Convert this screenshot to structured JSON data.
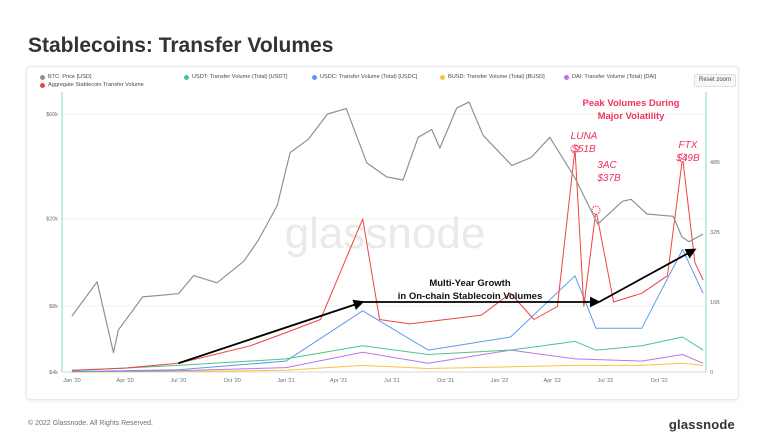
{
  "page": {
    "title": "Stablecoins: Transfer Volumes",
    "reset_zoom": "Reset zoom",
    "footer": "© 2022 Glassnode. All Rights Reserved.",
    "brand": "glassnode",
    "watermark": "glassnode"
  },
  "colors": {
    "btc": "#8a9397",
    "usdt": "#4fc28b",
    "usdc": "#5b9cf0",
    "busd": "#f5c542",
    "dai": "#b678e6",
    "aggregate": "#f0433f",
    "annotation": "#f0325f",
    "arrow": "#000000"
  },
  "chart_data": {
    "type": "line",
    "title": "Stablecoins: Transfer Volumes",
    "legend": [
      {
        "name": "BTC: Price [USD]",
        "color": "#8a9397"
      },
      {
        "name": "USDT: Transfer Volume (Total) [USDT]",
        "color": "#4fc28b"
      },
      {
        "name": "USDC: Transfer Volume (Total) [USDC]",
        "color": "#5b9cf0"
      },
      {
        "name": "BUSD: Transfer Volume (Total) [BUSD]",
        "color": "#f5c542"
      },
      {
        "name": "DAI: Transfer Volume (Total) [DAI]",
        "color": "#b678e6"
      },
      {
        "name": "Aggregate Stablecoin Transfer Volume",
        "color": "#f0433f"
      }
    ],
    "x_range": [
      "2019-12-15",
      "2022-12-20"
    ],
    "x_ticks": [
      {
        "date": "2020-01-01",
        "label": "Jan '20"
      },
      {
        "date": "2020-04-01",
        "label": "Apr '20"
      },
      {
        "date": "2020-07-01",
        "label": "Jul '20"
      },
      {
        "date": "2020-10-01",
        "label": "Oct '20"
      },
      {
        "date": "2021-01-01",
        "label": "Jan '21"
      },
      {
        "date": "2021-04-01",
        "label": "Apr '21"
      },
      {
        "date": "2021-07-01",
        "label": "Jul '21"
      },
      {
        "date": "2021-10-01",
        "label": "Oct '21"
      },
      {
        "date": "2022-01-01",
        "label": "Jan '22"
      },
      {
        "date": "2022-04-01",
        "label": "Apr '22"
      },
      {
        "date": "2022-07-01",
        "label": "Jul '22"
      },
      {
        "date": "2022-10-01",
        "label": "Oct '22"
      }
    ],
    "y_left": {
      "scale": "log",
      "ticks": [
        {
          "value": 4000,
          "label": "$4k"
        },
        {
          "value": 8000,
          "label": "$8k"
        },
        {
          "value": 20000,
          "label": "$20k"
        },
        {
          "value": 60000,
          "label": "$60k"
        }
      ],
      "range": [
        4000,
        60000
      ]
    },
    "y_right": {
      "scale": "linear",
      "ticks": [
        {
          "value": 0,
          "label": "0"
        },
        {
          "value": 16000000000,
          "label": "16B"
        },
        {
          "value": 32000000000,
          "label": "32B"
        },
        {
          "value": 48000000000,
          "label": "48B"
        }
      ],
      "range": [
        0,
        64000000000
      ]
    },
    "series": [
      {
        "name": "BTC: Price [USD]",
        "axis": "left",
        "x": [
          "2020-01-01",
          "2020-02-13",
          "2020-03-12",
          "2020-03-20",
          "2020-05-01",
          "2020-07-01",
          "2020-07-27",
          "2020-09-05",
          "2020-10-21",
          "2020-11-15",
          "2020-12-17",
          "2021-01-08",
          "2021-02-08",
          "2021-03-13",
          "2021-04-14",
          "2021-05-19",
          "2021-06-22",
          "2021-07-20",
          "2021-08-15",
          "2021-09-07",
          "2021-09-21",
          "2021-10-20",
          "2021-11-10",
          "2021-12-04",
          "2022-01-22",
          "2022-02-24",
          "2022-03-28",
          "2022-05-09",
          "2022-06-18",
          "2022-07-30",
          "2022-08-14",
          "2022-09-10",
          "2022-10-25",
          "2022-11-09",
          "2022-11-21",
          "2022-12-15"
        ],
        "values": [
          7200,
          10300,
          4900,
          6200,
          8800,
          9100,
          11000,
          10200,
          12800,
          16000,
          23000,
          40000,
          46000,
          60000,
          63500,
          36000,
          31000,
          30000,
          47000,
          51000,
          42000,
          64000,
          68000,
          48000,
          35000,
          38000,
          47000,
          31000,
          18900,
          24000,
          24500,
          21000,
          20500,
          16500,
          15700,
          17000
        ]
      },
      {
        "name": "Aggregate Stablecoin Transfer Volume",
        "axis": "right",
        "x": [
          "2020-01-01",
          "2020-04-01",
          "2020-07-01",
          "2020-09-01",
          "2020-11-01",
          "2021-01-01",
          "2021-03-01",
          "2021-05-12",
          "2021-06-10",
          "2021-08-01",
          "2021-10-01",
          "2021-12-01",
          "2022-01-20",
          "2022-03-01",
          "2022-04-10",
          "2022-05-10",
          "2022-05-25",
          "2022-06-15",
          "2022-07-15",
          "2022-09-01",
          "2022-10-15",
          "2022-11-10",
          "2022-12-01",
          "2022-12-15"
        ],
        "values": [
          400000000,
          900000000,
          2000000000,
          4000000000,
          6000000000,
          9000000000,
          12000000000,
          35000000000,
          12000000000,
          11000000000,
          12000000000,
          13000000000,
          18000000000,
          12000000000,
          15000000000,
          51000000000,
          15000000000,
          37000000000,
          16000000000,
          18000000000,
          22000000000,
          49000000000,
          25000000000,
          21000000000
        ]
      },
      {
        "name": "USDC: Transfer Volume (Total) [USDC]",
        "axis": "right",
        "x": [
          "2020-01-01",
          "2020-07-01",
          "2021-01-01",
          "2021-05-12",
          "2021-09-01",
          "2022-01-20",
          "2022-05-10",
          "2022-06-15",
          "2022-09-01",
          "2022-11-10",
          "2022-12-15"
        ],
        "values": [
          100000000,
          500000000,
          2500000000,
          14000000000,
          5000000000,
          8000000000,
          22000000000,
          10000000000,
          10000000000,
          28000000000,
          18000000000
        ]
      },
      {
        "name": "USDT: Transfer Volume (Total) [USDT]",
        "axis": "right",
        "x": [
          "2020-01-01",
          "2020-07-01",
          "2021-01-01",
          "2021-05-12",
          "2021-09-01",
          "2022-01-20",
          "2022-05-10",
          "2022-06-15",
          "2022-09-01",
          "2022-11-10",
          "2022-12-15"
        ],
        "values": [
          300000000,
          1500000000,
          3000000000,
          6000000000,
          4000000000,
          5000000000,
          7000000000,
          5000000000,
          6000000000,
          8000000000,
          5000000000
        ]
      },
      {
        "name": "DAI: Transfer Volume (Total) [DAI]",
        "axis": "right",
        "x": [
          "2020-01-01",
          "2020-07-01",
          "2021-01-01",
          "2021-05-12",
          "2021-09-01",
          "2022-01-20",
          "2022-05-10",
          "2022-09-01",
          "2022-11-10",
          "2022-12-15"
        ],
        "values": [
          50000000,
          300000000,
          1000000000,
          4500000000,
          2000000000,
          5000000000,
          3000000000,
          2500000000,
          4000000000,
          2000000000
        ]
      },
      {
        "name": "BUSD: Transfer Volume (Total) [BUSD]",
        "axis": "right",
        "x": [
          "2020-01-01",
          "2020-07-01",
          "2021-01-01",
          "2021-05-12",
          "2021-09-01",
          "2022-01-20",
          "2022-05-10",
          "2022-09-01",
          "2022-11-10",
          "2022-12-15"
        ],
        "values": [
          0,
          100000000,
          400000000,
          1500000000,
          800000000,
          1200000000,
          1500000000,
          1500000000,
          2000000000,
          1500000000
        ]
      }
    ],
    "annotations": [
      {
        "text": "Peak Volumes During",
        "type": "heading"
      },
      {
        "text": "Major Volatility",
        "type": "heading"
      },
      {
        "text": "LUNA",
        "type": "event-label"
      },
      {
        "text": "$51B",
        "type": "event-value",
        "date": "2022-05-10",
        "value": 51000000000
      },
      {
        "text": "3AC",
        "type": "event-label"
      },
      {
        "text": "$37B",
        "type": "event-value",
        "date": "2022-06-15",
        "value": 37000000000
      },
      {
        "text": "FTX",
        "type": "event-label"
      },
      {
        "text": "$49B",
        "type": "event-value",
        "date": "2022-11-10",
        "value": 49000000000
      },
      {
        "text": "Multi-Year Growth",
        "type": "callout"
      },
      {
        "text": "in On-chain Stablecoin Volumes",
        "type": "callout"
      }
    ],
    "trend_arrows": [
      {
        "from": {
          "date": "2020-07-01",
          "value": 2000000000
        },
        "to": {
          "date": "2021-05-12",
          "value": 16000000000
        }
      },
      {
        "from": {
          "date": "2021-05-12",
          "value": 16000000000
        },
        "to": {
          "date": "2022-06-20",
          "value": 16000000000
        }
      },
      {
        "from": {
          "date": "2022-06-20",
          "value": 16000000000
        },
        "to": {
          "date": "2022-12-01",
          "value": 28000000000
        }
      }
    ],
    "grid": true,
    "legend_position": "top"
  }
}
